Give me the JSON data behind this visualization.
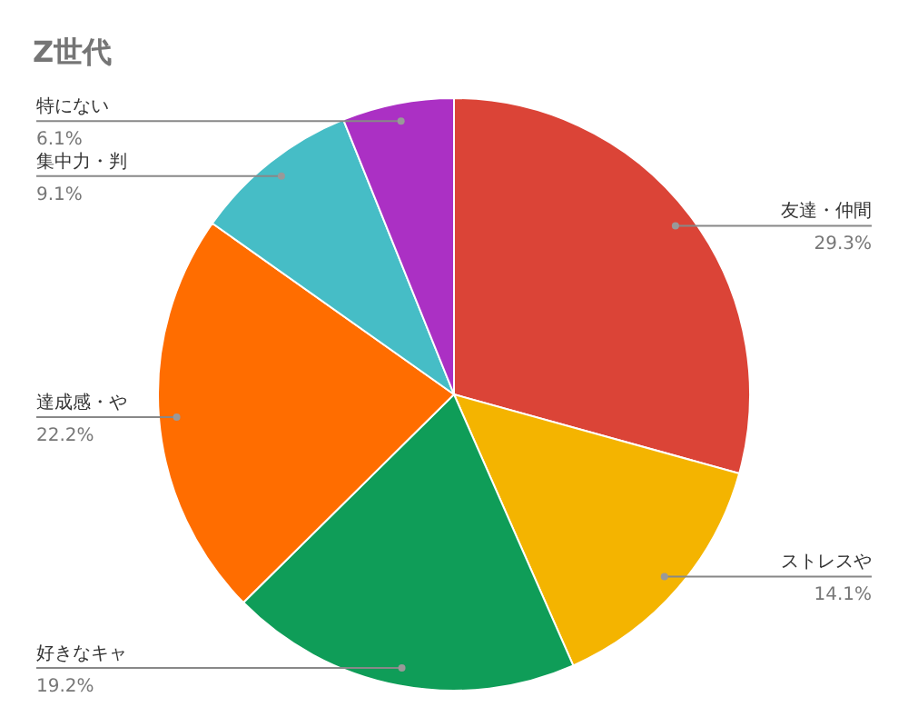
{
  "chart_data": {
    "type": "pie",
    "title": "Z世代",
    "categories": [
      "友達・仲間",
      "ストレスや",
      "好きなキャ",
      "達成感・や",
      "集中力・判",
      "特にない"
    ],
    "values": [
      29.3,
      14.1,
      19.2,
      22.2,
      9.1,
      6.1
    ],
    "colors": [
      "#db4437",
      "#f4b400",
      "#0f9d58",
      "#ff6d00",
      "#46bdc6",
      "#ab30c4"
    ],
    "value_labels": [
      "29.3%",
      "14.1%",
      "19.2%",
      "22.2%",
      "9.1%",
      "6.1%"
    ]
  }
}
